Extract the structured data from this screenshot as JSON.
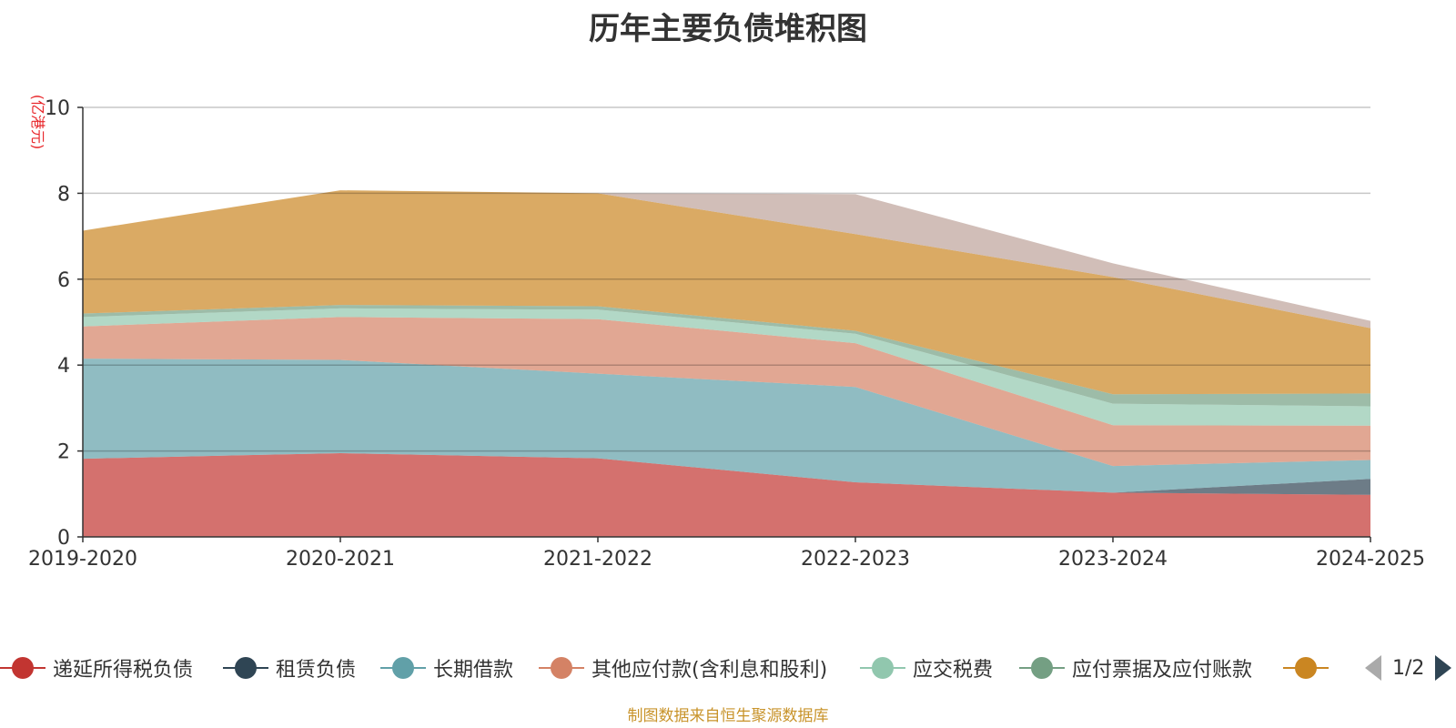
{
  "title": "历年主要负债堆积图",
  "source_note": "制图数据来自恒生聚源数据库",
  "legend": {
    "page_indicator": "1/2",
    "visible_items": [
      {
        "label": "递延所得税负债",
        "color": "#c23531"
      },
      {
        "label": "租赁负债",
        "color": "#2f4554"
      },
      {
        "label": "长期借款",
        "color": "#61a0a8"
      },
      {
        "label": "其他应付款(含利息和股利)",
        "color": "#d48265"
      },
      {
        "label": "应交税费",
        "color": "#91c7ae"
      },
      {
        "label": "应付票据及应付账款",
        "color": "#749f83"
      },
      {
        "label": "",
        "color": "#ca8622"
      }
    ]
  },
  "chart_data": {
    "type": "area",
    "stacked": true,
    "title": "历年主要负债堆积图",
    "ylabel": "(亿港元)",
    "xlabel": "",
    "categories": [
      "2019-2020",
      "2020-2021",
      "2021-2022",
      "2022-2023",
      "2023-2024",
      "2024-2025"
    ],
    "ylim": [
      0,
      10
    ],
    "yticks": [
      0,
      2,
      4,
      6,
      8,
      10
    ],
    "grid": true,
    "series": [
      {
        "name": "递延所得税负债",
        "color": "#c23531",
        "values": [
          1.82,
          1.95,
          1.83,
          1.27,
          1.03,
          0.98
        ]
      },
      {
        "name": "租赁负债",
        "color": "#2f4554",
        "values": [
          0,
          0,
          0,
          0,
          0,
          0.37
        ]
      },
      {
        "name": "长期借款",
        "color": "#61a0a8",
        "values": [
          2.33,
          2.17,
          1.97,
          2.22,
          0.62,
          0.44
        ]
      },
      {
        "name": "其他应付款(含利息和股利)",
        "color": "#d48265",
        "values": [
          0.75,
          1.0,
          1.27,
          1.02,
          0.95,
          0.8
        ]
      },
      {
        "name": "应交税费",
        "color": "#91c7ae",
        "values": [
          0.22,
          0.2,
          0.22,
          0.22,
          0.5,
          0.45
        ]
      },
      {
        "name": "应付票据及应付账款",
        "color": "#749f83",
        "values": [
          0.08,
          0.08,
          0.08,
          0.07,
          0.22,
          0.3
        ]
      },
      {
        "color": "#ca8622",
        "values": [
          1.93,
          2.67,
          2.63,
          2.25,
          2.73,
          1.52
        ]
      },
      {
        "color": "#bda29a",
        "values": [
          0,
          0,
          0,
          0.93,
          0.32,
          0.17
        ]
      }
    ]
  }
}
